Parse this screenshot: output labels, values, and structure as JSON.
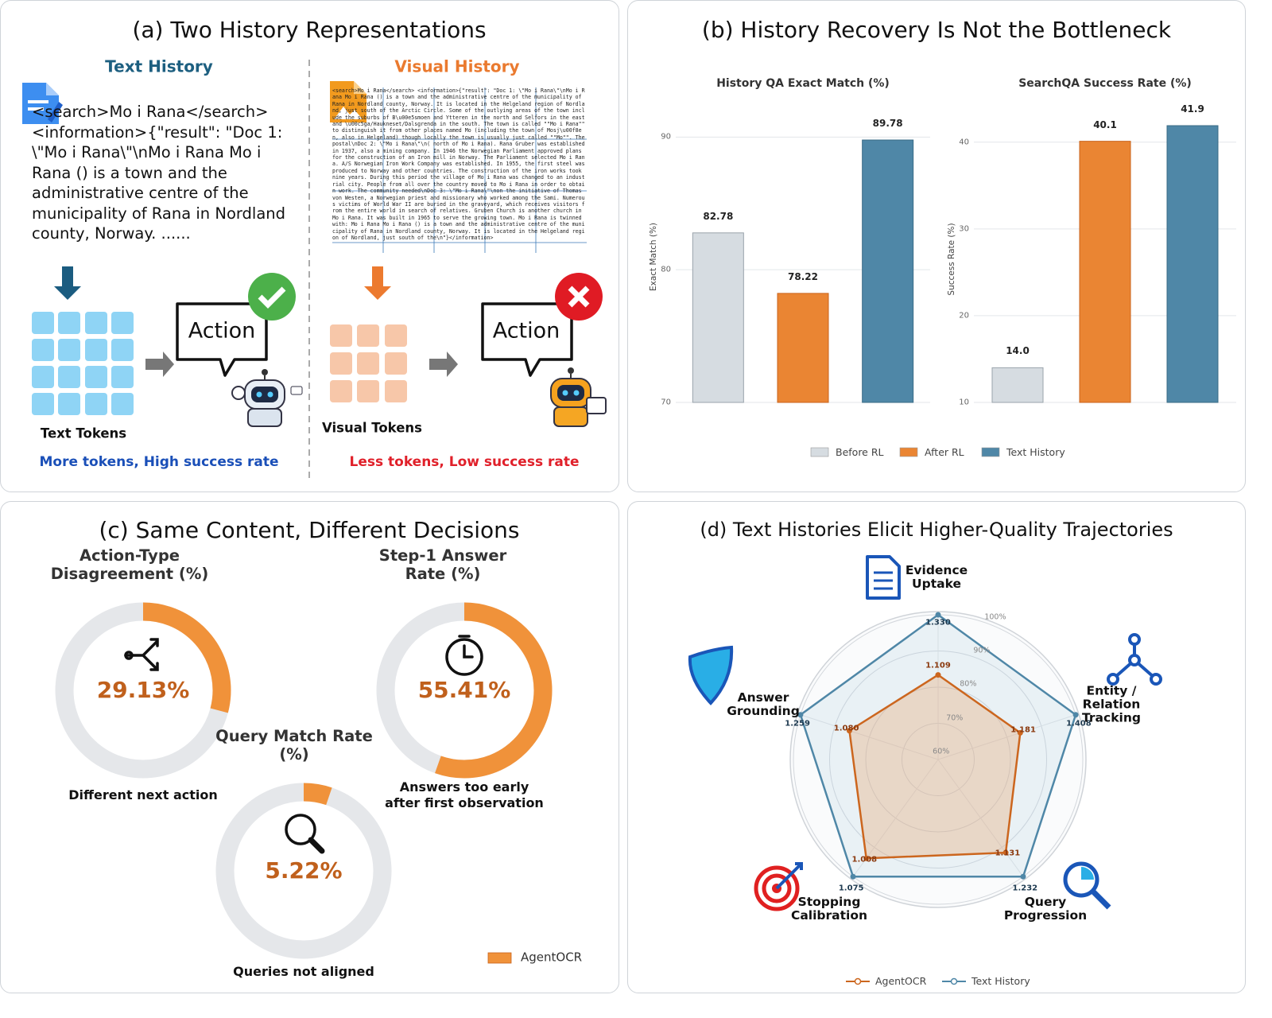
{
  "diagram": {
    "title": "(a) Two History Representations",
    "text_history": {
      "heading": "Text History",
      "content": "<search>Mo i Rana</search> <information>{\"result\": \"Doc 1: \\\"Mo i Rana\\\"\\nMo i Rana Mo i Rana () is a town and the administrative centre of the municipality of Rana in Nordland county, Norway. ......",
      "tokens_label": "Text Tokens",
      "action": "Action",
      "caption": "More tokens, High success rate"
    },
    "visual_history": {
      "heading": "Visual History",
      "content": "<search>Mo i Rana</search> <information>{\"result\": \"Doc 1: \\\"Mo i Rana\\\"\\nMo i Rana Mo i Rana () is a town and the administrative centre of the municipality of Rana in Nordland county, Norway. It is located in the Helgeland region of Nordland, just south of the Arctic Circle. Some of the outlying areas of the town include the suburbs of B\\u00e5smoen and Ytteren in the north and Selfors in the east and \\u00c5ga/Haukneset/Dalsgrenda in the south. The town is called \"\"Mo i Rana\"\" to distinguish it from other places named Mo (including the town of Mosj\\u00f8en, also in Helgeland) though locally the town is usually just called \"\"Mo\"\". The postal\\nDoc 2: \\\"Mo i Rana\\\"\\n( north of Mo i Rana). Rana Gruber was established in 1937, also a mining company. In 1946 the Norwegian Parliament approved plans for the construction of an Iron mill in Norway. The Parliament selected Mo i Rana. A/S Norwegian Iron Work Company was established. In 1955, the first steel was produced to Norway and other countries. The construction of the iron works took nine years. During this period the village of Mo i Rana was changed to an industrial city. People from all over the country moved to Mo i Rana in order to obtain work. The community needed\\nDoc 3: \\\"Mo i Rana\\\"\\non the initiative of Thomas von Westen, a Norwegian priest and missionary who worked among the Sami. Numerous victims of World War II are buried in the graveyard, which receives visitors from the entire world in search of relatives. Gruben Church is another church in Mo i Rana. It was built in 1965 to serve the growing town. Mo i Rana is twinned with: Mo i Rana Mo i Rana () is a town and the administrative centre of the municipality of Rana in Nordland county, Norway. It is located in the Helgeland region of Nordland, just south of the\\n\"}</information>",
      "tokens_label": "Visual Tokens",
      "action": "Action",
      "caption": "Less tokens, Low success rate"
    }
  },
  "chart_data": [
    {
      "type": "bar",
      "title": "(b) History Recovery Is Not the Bottleneck",
      "subplots": [
        {
          "title": "History QA Exact Match (%)",
          "ylabel": "Exact Match (%)",
          "ylim": [
            70,
            92
          ],
          "yticks": [
            70,
            80,
            90
          ]
        },
        {
          "title": "SearchQA Success Rate (%)",
          "ylabel": "Success Rate (%)",
          "ylim": [
            10,
            43
          ],
          "yticks": [
            10,
            20,
            30,
            40
          ]
        }
      ],
      "series": [
        {
          "name": "Before RL",
          "color": "#d6dce1",
          "values": [
            82.78,
            14.0
          ],
          "value_labels": [
            "82.78",
            "14.0"
          ]
        },
        {
          "name": "After RL",
          "color": "#ea8533",
          "values": [
            78.22,
            40.1
          ],
          "value_labels": [
            "78.22",
            "40.1"
          ]
        },
        {
          "name": "Text History",
          "color": "#4f87a7",
          "values": [
            89.78,
            41.9
          ],
          "value_labels": [
            "89.78",
            "41.9"
          ]
        }
      ],
      "grid": true,
      "legend": "bottom"
    },
    {
      "type": "donut",
      "title": "(c) Same Content, Different Decisions",
      "categories": [
        "Action-Type Disagreement (%)",
        "Step-1 Answer Rate (%)",
        "Query Match Rate (%)"
      ],
      "values": [
        29.13,
        55.41,
        5.22
      ],
      "value_labels": [
        "29.13%",
        "55.41%",
        "5.22%"
      ],
      "captions": [
        "Different next action",
        "Answers too early after first observation",
        "Queries not aligned"
      ],
      "ylim": [
        0,
        100
      ],
      "series": [
        {
          "name": "AgentOCR",
          "color": "#f0923a"
        }
      ],
      "legend": "lower right"
    },
    {
      "type": "radar",
      "title": "(d) Text Histories Elicit Higher-Quality Trajectories",
      "categories": [
        "Evidence Uptake",
        "Entity / Relation Tracking",
        "Query Progression",
        "Stopping Calibration",
        "Answer Grounding"
      ],
      "series": [
        {
          "name": "AgentOCR",
          "color": "#cc661e",
          "values": [
            1.109,
            1.181,
            1.131,
            1.008,
            1.08
          ],
          "value_labels": [
            "1.109",
            "1.181",
            "1.131",
            "1.008",
            "1.080"
          ]
        },
        {
          "name": "Text History",
          "color": "#4f87a7",
          "values": [
            1.33,
            1.408,
            1.232,
            1.075,
            1.259
          ],
          "value_labels": [
            "1.330",
            "1.408",
            "1.232",
            "1.075",
            "1.259"
          ]
        }
      ],
      "rlim": [
        0.6,
        1.0
      ],
      "rticks": [
        {
          "value": 0.6,
          "label": "60%"
        },
        {
          "value": 0.7,
          "label": "70%"
        },
        {
          "value": 0.8,
          "label": "80%"
        },
        {
          "value": 0.9,
          "label": "90%"
        },
        {
          "value": 1.0,
          "label": "100%"
        }
      ],
      "legend": "bottom"
    }
  ]
}
